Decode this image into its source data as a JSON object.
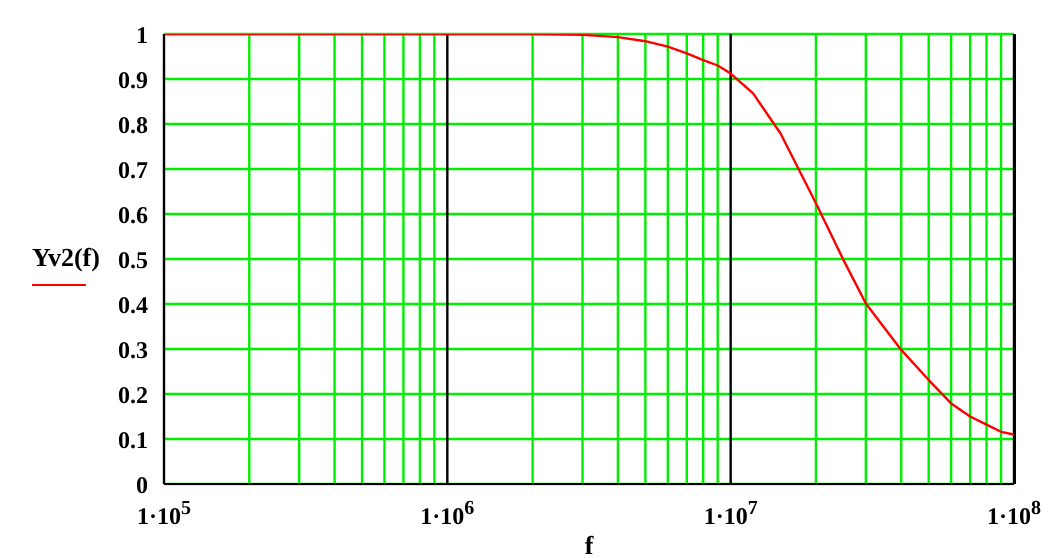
{
  "chart_data": {
    "type": "line",
    "xlabel": "f",
    "ylabel": "Yv2(f)",
    "log": "x",
    "grid": true,
    "marker": "none",
    "line_style": "solid",
    "xlim": [
      100000,
      100000000
    ],
    "ylim": [
      0,
      1
    ],
    "xticks": [
      {
        "value": 100000,
        "label": "1·10$^{5}$"
      },
      {
        "value": 200000,
        "label": null
      },
      {
        "value": 300000,
        "label": null
      },
      {
        "value": 400000,
        "label": null
      },
      {
        "value": 500000,
        "label": null
      },
      {
        "value": 600000,
        "label": null
      },
      {
        "value": 700000,
        "label": null
      },
      {
        "value": 800000,
        "label": null
      },
      {
        "value": 900000,
        "label": null
      },
      {
        "value": 1000000,
        "label": "1·10$^{6}$"
      },
      {
        "value": 2000000,
        "label": null
      },
      {
        "value": 3000000,
        "label": null
      },
      {
        "value": 4000000,
        "label": null
      },
      {
        "value": 5000000,
        "label": null
      },
      {
        "value": 6000000,
        "label": null
      },
      {
        "value": 7000000,
        "label": null
      },
      {
        "value": 8000000,
        "label": null
      },
      {
        "value": 9000000,
        "label": null
      },
      {
        "value": 10000000,
        "label": "1·10$^{7}$"
      },
      {
        "value": 20000000,
        "label": null
      },
      {
        "value": 30000000,
        "label": null
      },
      {
        "value": 40000000,
        "label": null
      },
      {
        "value": 50000000,
        "label": null
      },
      {
        "value": 60000000,
        "label": null
      },
      {
        "value": 70000000,
        "label": null
      },
      {
        "value": 80000000,
        "label": null
      },
      {
        "value": 90000000,
        "label": null
      },
      {
        "value": 100000000,
        "label": "1·10$^{8}$"
      }
    ],
    "yticks": [
      0,
      0.1,
      0.2,
      0.3,
      0.4,
      0.5,
      0.6,
      0.7,
      0.8,
      0.9,
      1
    ],
    "series": [
      {
        "color": "#ff0000",
        "x": [
          100000,
          1000000,
          2000000,
          3000000,
          4000000,
          5000000,
          6000000,
          7000000,
          8000000,
          9000000,
          10000000,
          12000000,
          15000000,
          20000000,
          25000000,
          30000000,
          40000000,
          50000000,
          60000000,
          70000000,
          80000000,
          90000000,
          100000000
        ],
        "values": [
          1,
          1,
          1,
          0.998,
          0.993,
          0.984,
          0.972,
          0.957,
          0.942,
          0.93,
          0.912,
          0.868,
          0.779,
          0.624,
          0.498,
          0.401,
          0.298,
          0.231,
          0.179,
          0.15,
          0.132,
          0.116,
          0.11
        ]
      }
    ]
  }
}
